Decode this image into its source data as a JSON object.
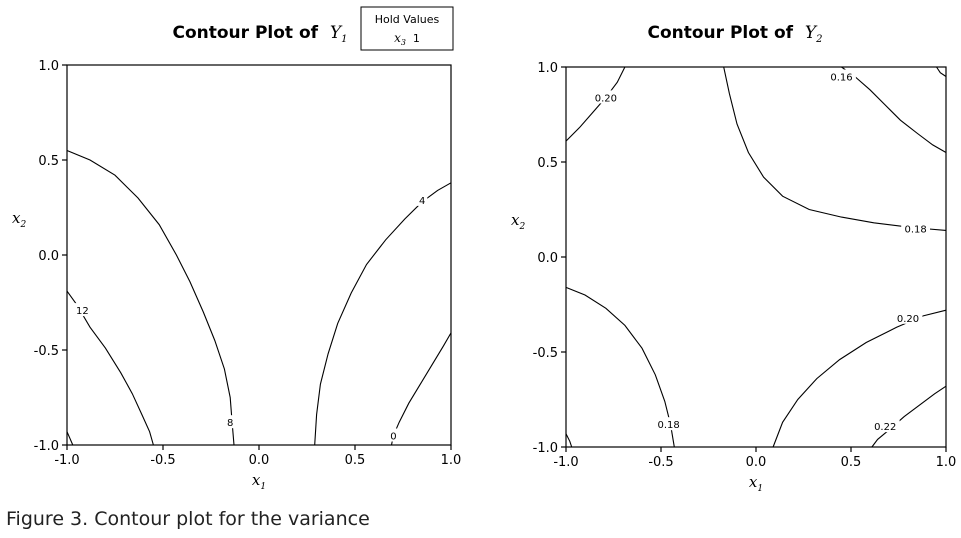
{
  "caption": "Figure 3.  Contour plot for the variance",
  "hold_values": {
    "title": "Hold Values",
    "var": "x",
    "sub": "3",
    "value": "1"
  },
  "chart_data": [
    {
      "type": "contour",
      "title_prefix": "Contour Plot of ",
      "title_var": "Y",
      "title_sub": "1",
      "xlabel_var": "x",
      "xlabel_sub": "1",
      "ylabel_var": "x",
      "ylabel_sub": "2",
      "xlim": [
        -1.0,
        1.0
      ],
      "ylim": [
        -1.0,
        1.0
      ],
      "xticks": [
        "-1.0",
        "-0.5",
        "0.0",
        "0.5",
        "1.0"
      ],
      "yticks": [
        "-1.0",
        "-0.5",
        "0.0",
        "0.5",
        "1.0"
      ],
      "contours": [
        {
          "level": "12",
          "points": [
            [
              -1.0,
              -0.93
            ],
            [
              -0.97,
              -1.0
            ]
          ]
        },
        {
          "level": "12",
          "points": [
            [
              -1.0,
              -0.19
            ],
            [
              -0.95,
              -0.26
            ],
            [
              -0.88,
              -0.38
            ],
            [
              -0.8,
              -0.49
            ],
            [
              -0.72,
              -0.62
            ],
            [
              -0.66,
              -0.73
            ],
            [
              -0.61,
              -0.84
            ],
            [
              -0.57,
              -0.93
            ],
            [
              -0.55,
              -1.0
            ]
          ],
          "label_at": [
            -0.92,
            -0.29
          ]
        },
        {
          "level": "8",
          "points": [
            [
              -1.0,
              0.55
            ],
            [
              -0.88,
              0.5
            ],
            [
              -0.75,
              0.42
            ],
            [
              -0.63,
              0.3
            ],
            [
              -0.52,
              0.16
            ],
            [
              -0.43,
              0.0
            ],
            [
              -0.36,
              -0.14
            ],
            [
              -0.29,
              -0.3
            ],
            [
              -0.23,
              -0.45
            ],
            [
              -0.18,
              -0.6
            ],
            [
              -0.15,
              -0.75
            ],
            [
              -0.14,
              -0.88
            ],
            [
              -0.13,
              -1.0
            ]
          ],
          "label_at": [
            -0.15,
            -0.88
          ]
        },
        {
          "level": "4",
          "points": [
            [
              1.0,
              0.38
            ],
            [
              0.93,
              0.34
            ],
            [
              0.85,
              0.28
            ],
            [
              0.76,
              0.19
            ],
            [
              0.66,
              0.08
            ],
            [
              0.56,
              -0.05
            ],
            [
              0.48,
              -0.2
            ],
            [
              0.41,
              -0.36
            ],
            [
              0.36,
              -0.52
            ],
            [
              0.32,
              -0.68
            ],
            [
              0.3,
              -0.84
            ],
            [
              0.29,
              -1.0
            ]
          ],
          "label_at": [
            0.85,
            0.29
          ]
        },
        {
          "level": "0",
          "points": [
            [
              1.0,
              -0.41
            ],
            [
              0.96,
              -0.48
            ],
            [
              0.9,
              -0.58
            ],
            [
              0.84,
              -0.68
            ],
            [
              0.78,
              -0.78
            ],
            [
              0.73,
              -0.88
            ],
            [
              0.7,
              -0.95
            ],
            [
              0.69,
              -1.0
            ]
          ],
          "label_at": [
            0.7,
            -0.95
          ]
        }
      ]
    },
    {
      "type": "contour",
      "title_prefix": "Contour Plot of ",
      "title_var": "Y",
      "title_sub": "2",
      "xlabel_var": "x",
      "xlabel_sub": "1",
      "ylabel_var": "x",
      "ylabel_sub": "2",
      "xlim": [
        -1.0,
        1.0
      ],
      "ylim": [
        -1.0,
        1.0
      ],
      "xticks": [
        "-1.0",
        "-0.5",
        "0.0",
        "0.5",
        "1.0"
      ],
      "yticks": [
        "-1.0",
        "-0.5",
        "0.0",
        "0.5",
        "1.0"
      ],
      "contours": [
        {
          "level": "0.20",
          "points": [
            [
              -1.0,
              0.61
            ],
            [
              -0.93,
              0.68
            ],
            [
              -0.86,
              0.76
            ],
            [
              -0.79,
              0.84
            ],
            [
              -0.73,
              0.92
            ],
            [
              -0.69,
              1.0
            ]
          ],
          "label_at": [
            -0.79,
            0.84
          ]
        },
        {
          "level": "0.18",
          "points": [
            [
              -0.17,
              1.0
            ],
            [
              -0.14,
              0.86
            ],
            [
              -0.1,
              0.7
            ],
            [
              -0.04,
              0.55
            ],
            [
              0.04,
              0.42
            ],
            [
              0.14,
              0.32
            ],
            [
              0.28,
              0.25
            ],
            [
              0.45,
              0.21
            ],
            [
              0.62,
              0.18
            ],
            [
              0.78,
              0.16
            ],
            [
              0.88,
              0.15
            ],
            [
              1.0,
              0.14
            ]
          ],
          "label_at": [
            0.84,
            0.15
          ]
        },
        {
          "level": "0.16",
          "points": [
            [
              0.45,
              1.0
            ],
            [
              0.52,
              0.95
            ],
            [
              0.6,
              0.88
            ],
            [
              0.68,
              0.8
            ],
            [
              0.76,
              0.72
            ],
            [
              0.85,
              0.65
            ],
            [
              0.93,
              0.59
            ],
            [
              1.0,
              0.55
            ]
          ],
          "label_at": [
            0.45,
            0.95
          ]
        },
        {
          "level": "0.16",
          "points": [
            [
              0.95,
              1.0
            ],
            [
              0.97,
              0.97
            ],
            [
              1.0,
              0.95
            ]
          ]
        },
        {
          "level": "0.18",
          "points": [
            [
              -1.0,
              -0.16
            ],
            [
              -0.9,
              -0.2
            ],
            [
              -0.79,
              -0.27
            ],
            [
              -0.69,
              -0.36
            ],
            [
              -0.6,
              -0.48
            ],
            [
              -0.53,
              -0.62
            ],
            [
              -0.48,
              -0.76
            ],
            [
              -0.45,
              -0.88
            ],
            [
              -0.43,
              -1.0
            ]
          ],
          "label_at": [
            -0.46,
            -0.88
          ]
        },
        {
          "level": "0.18",
          "points": [
            [
              -1.0,
              -0.93
            ],
            [
              -0.98,
              -0.97
            ],
            [
              -0.97,
              -1.0
            ]
          ]
        },
        {
          "level": "0.20",
          "points": [
            [
              1.0,
              -0.28
            ],
            [
              0.88,
              -0.31
            ],
            [
              0.74,
              -0.37
            ],
            [
              0.58,
              -0.45
            ],
            [
              0.44,
              -0.54
            ],
            [
              0.32,
              -0.64
            ],
            [
              0.22,
              -0.75
            ],
            [
              0.14,
              -0.87
            ],
            [
              0.09,
              -1.0
            ]
          ],
          "label_at": [
            0.8,
            -0.32
          ]
        },
        {
          "level": "0.22",
          "points": [
            [
              1.0,
              -0.68
            ],
            [
              0.94,
              -0.72
            ],
            [
              0.86,
              -0.78
            ],
            [
              0.78,
              -0.84
            ],
            [
              0.7,
              -0.91
            ],
            [
              0.64,
              -0.96
            ],
            [
              0.61,
              -1.0
            ]
          ],
          "label_at": [
            0.68,
            -0.89
          ]
        }
      ]
    }
  ]
}
